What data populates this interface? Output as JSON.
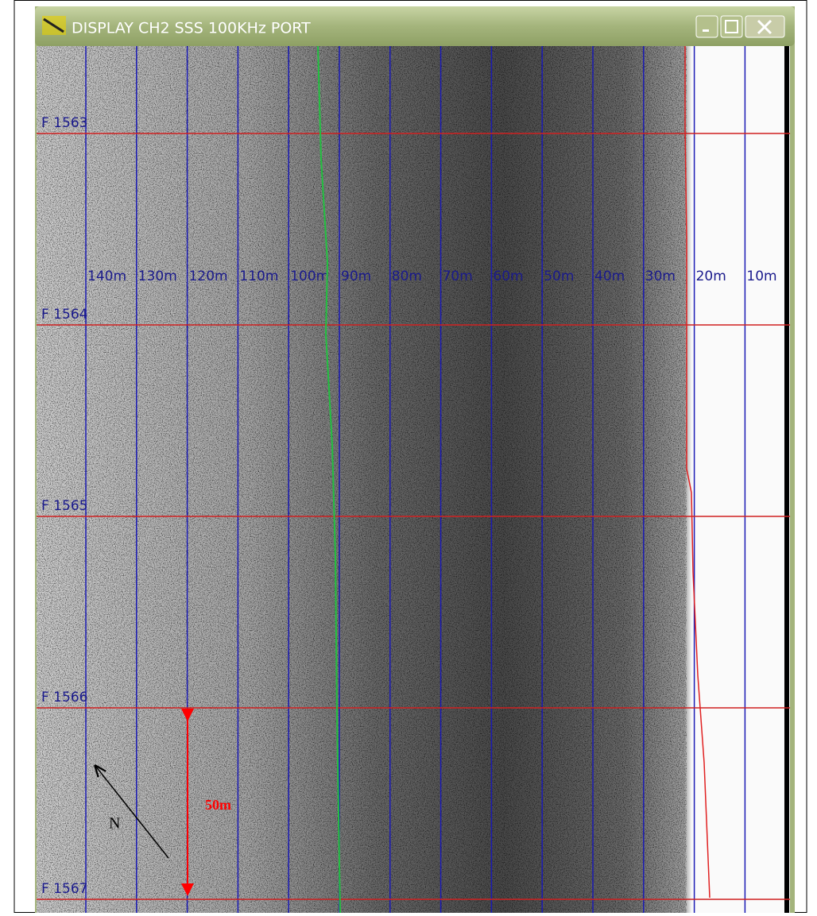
{
  "window": {
    "title": "DISPLAY CH2 SSS 100KHz PORT"
  },
  "range_labels": [
    "140m",
    "130m",
    "120m",
    "110m",
    "100m",
    "90m",
    "80m",
    "70m",
    "60m",
    "50m",
    "40m",
    "30m",
    "20m",
    "10m"
  ],
  "fix_labels": [
    "F 1563",
    "F 1564",
    "F 1565",
    "F 1566",
    "F 1567"
  ],
  "annotations": {
    "scale": "50m",
    "north": "N"
  }
}
